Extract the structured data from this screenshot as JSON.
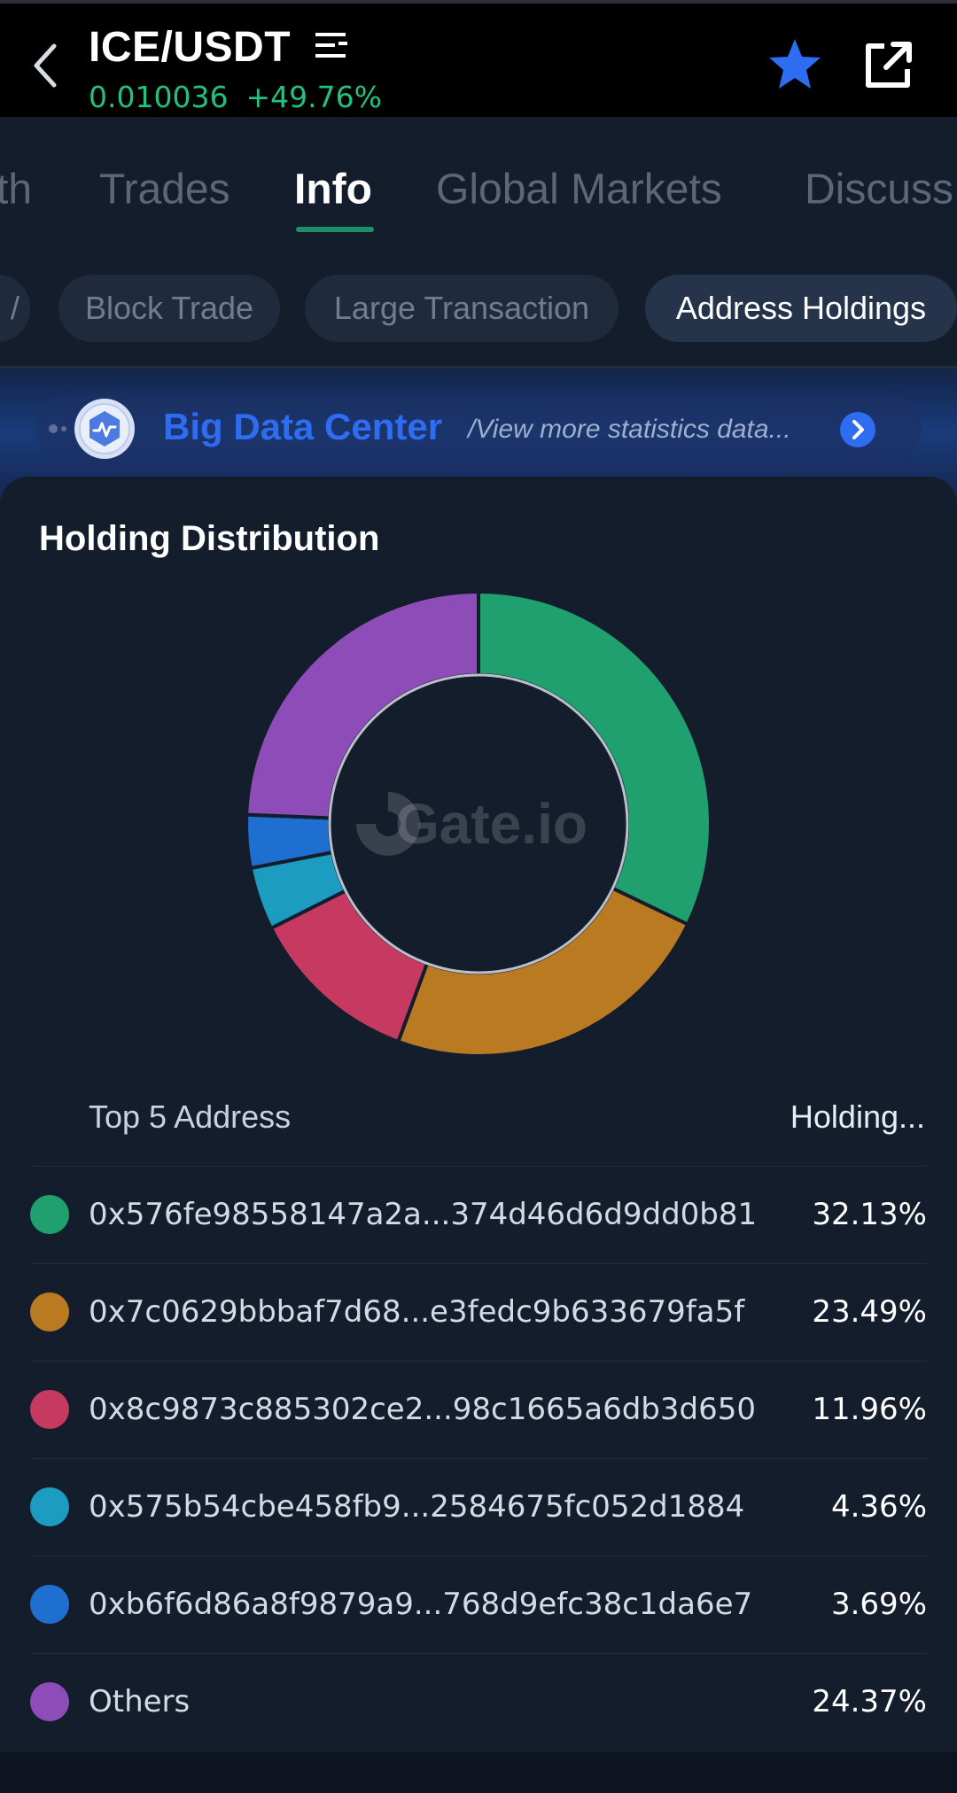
{
  "header": {
    "pair": "ICE/USDT",
    "price": "0.010036",
    "change": "+49.76%"
  },
  "tabs": [
    {
      "label": "th"
    },
    {
      "label": "Trades"
    },
    {
      "label": "Info"
    },
    {
      "label": "Global Markets"
    },
    {
      "label": "Discuss"
    }
  ],
  "chips": [
    {
      "label": "Block Trade"
    },
    {
      "label": "Large Transaction"
    },
    {
      "label": "Address Holdings"
    }
  ],
  "banner": {
    "title": "Big Data Center",
    "subtitle": "/View more statistics data..."
  },
  "holding": {
    "title": "Holding Distribution",
    "watermark": "Gate.io",
    "col_address": "Top 5 Address",
    "col_holding": "Holding..."
  },
  "chart_data": {
    "type": "pie",
    "categories": [
      "0x576fe98558147a2a...374d46d6d9dd0b81",
      "0x7c0629bbbaf7d68...e3fedc9b633679fa5f",
      "0x8c9873c885302ce2...98c1665a6db3d650",
      "0x575b54cbe458fb9...2584675fc052d1884",
      "0xb6f6d86a8f9879a9...768d9efc38c1da6e7",
      "Others"
    ],
    "values": [
      32.13,
      23.49,
      11.96,
      4.36,
      3.69,
      24.37
    ],
    "labels": [
      "32.13%",
      "23.49%",
      "11.96%",
      "4.36%",
      "3.69%",
      "24.37%"
    ],
    "colors": [
      "#21a06f",
      "#b97a22",
      "#c63a62",
      "#1c9cc0",
      "#1f6fd0",
      "#8e4cb8"
    ],
    "title": "Holding Distribution"
  },
  "colors": {
    "accent_green": "#22c17f",
    "star_blue": "#2e6cf2"
  }
}
